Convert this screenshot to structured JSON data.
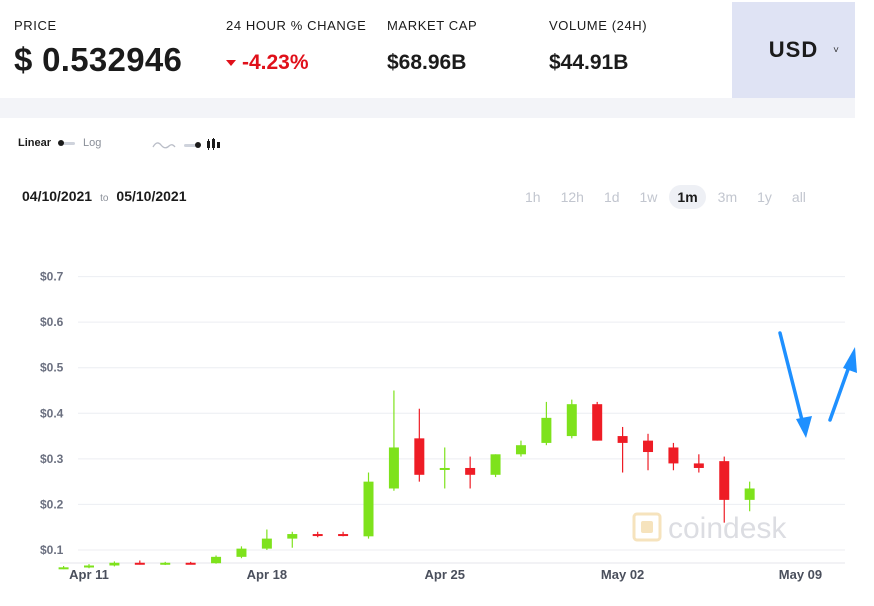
{
  "header": {
    "price_label": "PRICE",
    "price_value": "$ 0.532946",
    "change_label": "24 HOUR % CHANGE",
    "change_value": "-4.23%",
    "marketcap_label": "MARKET CAP",
    "marketcap_value": "$68.96B",
    "volume_label": "VOLUME (24H)",
    "volume_value": "$44.91B",
    "currency": "USD"
  },
  "controls": {
    "scale_linear": "Linear",
    "scale_log": "Log",
    "date_from": "04/10/2021",
    "date_to_word": "to",
    "date_to": "05/10/2021",
    "ranges": [
      "1h",
      "12h",
      "1d",
      "1w",
      "1m",
      "3m",
      "1y",
      "all"
    ],
    "active_range": "1m"
  },
  "watermark": "coindesk",
  "colors": {
    "up": "#7ee21c",
    "down": "#ee1c25",
    "arrow": "#1e90ff",
    "change_negative": "#e0101a",
    "currency_bg": "#dfe3f4"
  },
  "chart_data": {
    "type": "candlestick",
    "x_labels": [
      "Apr 11",
      "Apr 18",
      "Apr 25",
      "May 02",
      "May 09"
    ],
    "ylim": [
      0.07,
      0.75
    ],
    "yticks": [
      0.1,
      0.2,
      0.3,
      0.4,
      0.5,
      0.6,
      0.7
    ],
    "ytick_labels": [
      "$0.1",
      "$0.2",
      "$0.3",
      "$0.4",
      "$0.5",
      "$0.6",
      "$0.7"
    ],
    "candles": [
      {
        "date": "2021-04-10",
        "open": 0.06,
        "high": 0.065,
        "low": 0.058,
        "close": 0.062
      },
      {
        "date": "2021-04-11",
        "open": 0.062,
        "high": 0.069,
        "low": 0.06,
        "close": 0.066
      },
      {
        "date": "2021-04-12",
        "open": 0.066,
        "high": 0.075,
        "low": 0.064,
        "close": 0.072
      },
      {
        "date": "2021-04-13",
        "open": 0.072,
        "high": 0.077,
        "low": 0.068,
        "close": 0.07
      },
      {
        "date": "2021-04-14",
        "open": 0.07,
        "high": 0.074,
        "low": 0.067,
        "close": 0.072
      },
      {
        "date": "2021-04-15",
        "open": 0.072,
        "high": 0.074,
        "low": 0.069,
        "close": 0.071
      },
      {
        "date": "2021-04-16",
        "open": 0.071,
        "high": 0.088,
        "low": 0.07,
        "close": 0.085
      },
      {
        "date": "2021-04-17",
        "open": 0.085,
        "high": 0.108,
        "low": 0.082,
        "close": 0.103
      },
      {
        "date": "2021-04-18",
        "open": 0.103,
        "high": 0.145,
        "low": 0.1,
        "close": 0.125
      },
      {
        "date": "2021-04-19",
        "open": 0.125,
        "high": 0.14,
        "low": 0.105,
        "close": 0.135
      },
      {
        "date": "2021-04-20",
        "open": 0.135,
        "high": 0.14,
        "low": 0.128,
        "close": 0.133
      },
      {
        "date": "2021-04-21",
        "open": 0.135,
        "high": 0.14,
        "low": 0.13,
        "close": 0.132
      },
      {
        "date": "2021-04-22",
        "open": 0.13,
        "high": 0.27,
        "low": 0.125,
        "close": 0.25
      },
      {
        "date": "2021-04-23",
        "open": 0.235,
        "high": 0.45,
        "low": 0.23,
        "close": 0.325
      },
      {
        "date": "2021-04-24",
        "open": 0.345,
        "high": 0.41,
        "low": 0.25,
        "close": 0.265
      },
      {
        "date": "2021-04-25",
        "open": 0.28,
        "high": 0.325,
        "low": 0.235,
        "close": 0.28
      },
      {
        "date": "2021-04-26",
        "open": 0.28,
        "high": 0.305,
        "low": 0.235,
        "close": 0.265
      },
      {
        "date": "2021-04-27",
        "open": 0.265,
        "high": 0.31,
        "low": 0.26,
        "close": 0.31
      },
      {
        "date": "2021-04-28",
        "open": 0.31,
        "high": 0.34,
        "low": 0.305,
        "close": 0.33
      },
      {
        "date": "2021-04-29",
        "open": 0.335,
        "high": 0.425,
        "low": 0.33,
        "close": 0.39
      },
      {
        "date": "2021-04-30",
        "open": 0.35,
        "high": 0.43,
        "low": 0.345,
        "close": 0.42
      },
      {
        "date": "2021-05-01",
        "open": 0.42,
        "high": 0.425,
        "low": 0.34,
        "close": 0.34
      },
      {
        "date": "2021-05-02",
        "open": 0.35,
        "high": 0.37,
        "low": 0.27,
        "close": 0.335
      },
      {
        "date": "2021-05-03",
        "open": 0.34,
        "high": 0.355,
        "low": 0.275,
        "close": 0.315
      },
      {
        "date": "2021-05-04",
        "open": 0.325,
        "high": 0.335,
        "low": 0.275,
        "close": 0.29
      },
      {
        "date": "2021-05-05",
        "open": 0.29,
        "high": 0.31,
        "low": 0.27,
        "close": 0.28
      },
      {
        "date": "2021-05-06",
        "open": 0.295,
        "high": 0.305,
        "low": 0.16,
        "close": 0.21
      },
      {
        "date": "2021-05-07",
        "open": 0.21,
        "high": 0.25,
        "low": 0.185,
        "close": 0.235
      }
    ]
  }
}
